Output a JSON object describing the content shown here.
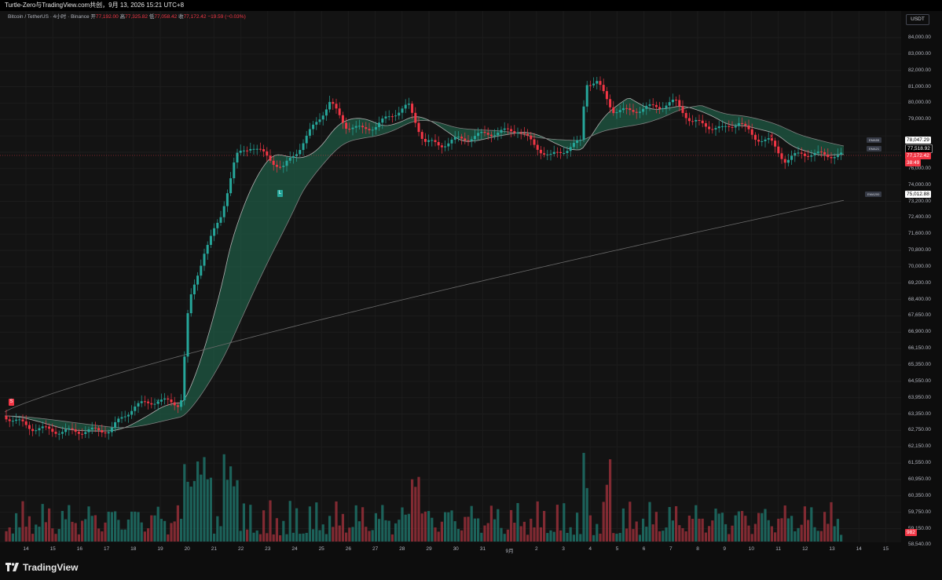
{
  "titlebar": {
    "text": "Turtle-Zero与TradingView.com共创，9月 13, 2026 15:21 UTC+8"
  },
  "symbol": {
    "name": "Bitcoin / TetherUS · 4小时 · Binance",
    "open_label": "开",
    "open": "77,192.00",
    "high_label": "高",
    "high": "77,325.82",
    "low_label": "低",
    "low": "77,058.42",
    "close_label": "收",
    "close": "77,172.42",
    "change": "−19.59 (−0.03%)"
  },
  "currency": "USDT",
  "price_ticks": [
    "84,000.00",
    "83,000.00",
    "82,000.00",
    "81,000.00",
    "80,000.00",
    "79,000.00",
    "77,000.00",
    "76,000.00",
    "74,000.00",
    "73,200.00",
    "72,400.00",
    "71,600.00",
    "70,800.00",
    "70,000.00",
    "69,200.00",
    "68,400.00",
    "67,650.00",
    "66,900.00",
    "66,150.00",
    "65,350.00",
    "64,550.00",
    "63,950.00",
    "63,350.00",
    "62,750.00",
    "62,150.00",
    "61,550.00",
    "60,950.00",
    "60,350.00",
    "59,750.00",
    "59,150.00",
    "58,540.00"
  ],
  "time_ticks": [
    "14",
    "15",
    "16",
    "17",
    "18",
    "19",
    "20",
    "21",
    "22",
    "23",
    "24",
    "25",
    "26",
    "27",
    "28",
    "29",
    "30",
    "31",
    "9月",
    "2",
    "3",
    "4",
    "5",
    "6",
    "7",
    "8",
    "9",
    "10",
    "11",
    "12",
    "13",
    "14",
    "15"
  ],
  "tags": {
    "ema55": {
      "label": "EMA55",
      "value": "78,047.29"
    },
    "ema21": {
      "label": "EMA21",
      "value": "77,518.92"
    },
    "last": {
      "value": "77,172.42",
      "countdown": "38:49"
    },
    "ema200": {
      "label": "EMA200",
      "value": "75,012.88"
    },
    "volume": "982"
  },
  "signals": {
    "short": "S",
    "long": "L"
  },
  "footer": {
    "logo_text": "TradingView"
  },
  "colors": {
    "up": "#26a69a",
    "down": "#f23645",
    "band_up": "#2e7d5a",
    "band_down": "#7a3038",
    "background": "#131313"
  }
}
